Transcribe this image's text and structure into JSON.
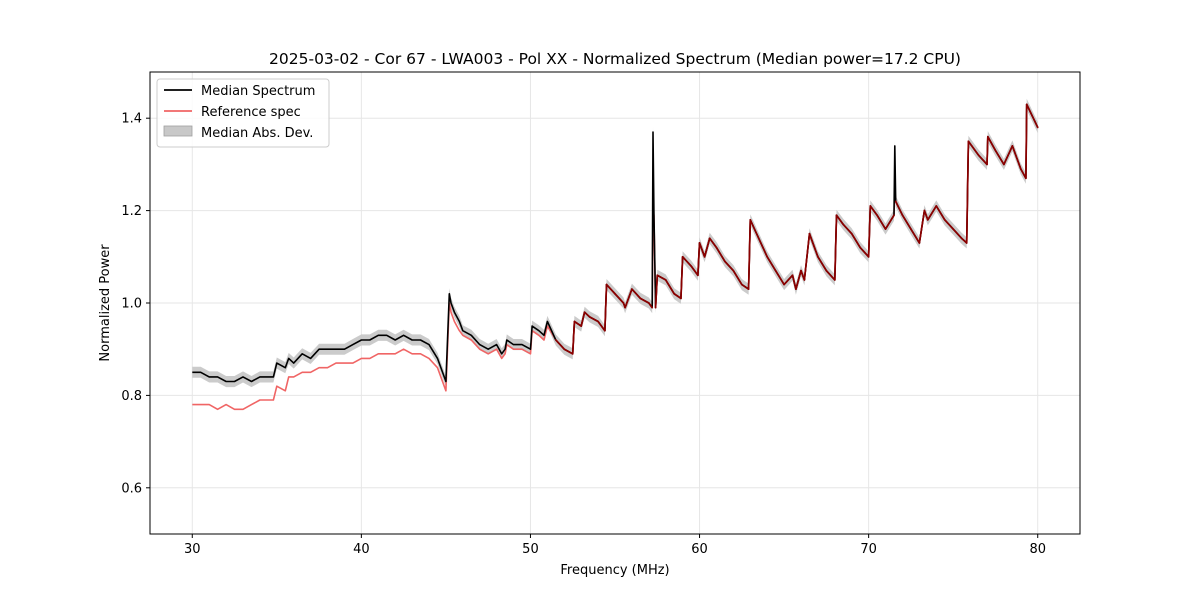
{
  "chart_data": {
    "type": "line",
    "title": "2025-03-02 - Cor 67 - LWA003 - Pol XX - Normalized Spectrum (Median power=17.2 CPU)",
    "xlabel": "Frequency (MHz)",
    "ylabel": "Normalized Power",
    "xlim": [
      27.5,
      82.5
    ],
    "ylim": [
      0.5,
      1.5
    ],
    "xticks": [
      30,
      40,
      50,
      60,
      70,
      80
    ],
    "yticks": [
      0.6,
      0.8,
      1.0,
      1.2,
      1.4
    ],
    "x_tick_labels": [
      "30",
      "40",
      "50",
      "60",
      "70",
      "80"
    ],
    "y_tick_labels": [
      "0.6",
      "0.8",
      "1.0",
      "1.2",
      "1.4"
    ],
    "grid": true,
    "legend_position": "top-left",
    "legend": [
      "Median Spectrum",
      "Reference spec",
      "Median Abs. Dev."
    ],
    "colors": {
      "median": "#000000",
      "reference": "#f06565",
      "mad_fill": "#c8c8c8",
      "overlap": "#8b0000"
    },
    "mad_halfwidth": 0.012,
    "series": [
      {
        "name": "Median Spectrum",
        "x": [
          30.0,
          30.5,
          31.0,
          31.5,
          32.0,
          32.5,
          33.0,
          33.5,
          34.0,
          34.5,
          34.8,
          35.0,
          35.5,
          35.7,
          36.0,
          36.5,
          37.0,
          37.5,
          38.0,
          38.5,
          39.0,
          39.5,
          40.0,
          40.5,
          41.0,
          41.5,
          42.0,
          42.5,
          43.0,
          43.5,
          44.0,
          44.5,
          45.0,
          45.2,
          45.3,
          45.5,
          45.8,
          46.0,
          46.5,
          47.0,
          47.5,
          48.0,
          48.3,
          48.5,
          48.6,
          49.0,
          49.5,
          50.0,
          50.1,
          50.5,
          50.8,
          51.0,
          51.5,
          52.0,
          52.5,
          52.6,
          53.0,
          53.2,
          53.5,
          54.0,
          54.4,
          54.5,
          55.0,
          55.5,
          55.6,
          56.0,
          56.5,
          57.0,
          57.2,
          57.25,
          57.3,
          57.4,
          57.5,
          58.0,
          58.5,
          58.9,
          59.0,
          59.5,
          59.9,
          60.0,
          60.3,
          60.6,
          61.0,
          61.5,
          62.0,
          62.5,
          62.9,
          63.0,
          63.5,
          64.0,
          64.5,
          65.0,
          65.5,
          65.7,
          66.0,
          66.2,
          66.5,
          66.8,
          67.0,
          67.5,
          68.0,
          68.1,
          68.5,
          69.0,
          69.5,
          70.0,
          70.1,
          70.5,
          71.0,
          71.5,
          71.55,
          71.6,
          72.0,
          72.5,
          73.0,
          73.3,
          73.5,
          74.0,
          74.5,
          75.0,
          75.5,
          75.8,
          75.9,
          76.5,
          77.0,
          77.05,
          77.5,
          78.0,
          78.5,
          79.0,
          79.3,
          79.35,
          80.0
        ],
        "values": [
          0.85,
          0.85,
          0.84,
          0.84,
          0.83,
          0.83,
          0.84,
          0.83,
          0.84,
          0.84,
          0.84,
          0.87,
          0.86,
          0.88,
          0.87,
          0.89,
          0.88,
          0.9,
          0.9,
          0.9,
          0.9,
          0.91,
          0.92,
          0.92,
          0.93,
          0.93,
          0.92,
          0.93,
          0.92,
          0.92,
          0.91,
          0.88,
          0.83,
          1.02,
          1.0,
          0.98,
          0.96,
          0.94,
          0.93,
          0.91,
          0.9,
          0.91,
          0.89,
          0.9,
          0.92,
          0.91,
          0.91,
          0.9,
          0.95,
          0.94,
          0.93,
          0.96,
          0.92,
          0.9,
          0.89,
          0.96,
          0.95,
          0.98,
          0.97,
          0.96,
          0.94,
          1.04,
          1.02,
          1.0,
          0.99,
          1.03,
          1.01,
          1.0,
          0.99,
          1.37,
          1.2,
          0.99,
          1.06,
          1.05,
          1.02,
          1.01,
          1.1,
          1.08,
          1.06,
          1.13,
          1.1,
          1.14,
          1.12,
          1.09,
          1.07,
          1.04,
          1.03,
          1.18,
          1.14,
          1.1,
          1.07,
          1.04,
          1.06,
          1.03,
          1.07,
          1.05,
          1.15,
          1.12,
          1.1,
          1.07,
          1.05,
          1.19,
          1.17,
          1.15,
          1.12,
          1.1,
          1.21,
          1.19,
          1.16,
          1.19,
          1.34,
          1.22,
          1.19,
          1.16,
          1.13,
          1.2,
          1.18,
          1.21,
          1.18,
          1.16,
          1.14,
          1.13,
          1.35,
          1.32,
          1.3,
          1.36,
          1.33,
          1.3,
          1.34,
          1.29,
          1.27,
          1.43,
          1.38
        ]
      },
      {
        "name": "Reference spec",
        "x": [
          30.0,
          30.5,
          31.0,
          31.5,
          32.0,
          32.5,
          33.0,
          33.5,
          34.0,
          34.5,
          34.8,
          35.0,
          35.5,
          35.7,
          36.0,
          36.5,
          37.0,
          37.5,
          38.0,
          38.5,
          39.0,
          39.5,
          40.0,
          40.5,
          41.0,
          41.5,
          42.0,
          42.5,
          43.0,
          43.5,
          44.0,
          44.5,
          45.0,
          45.2,
          45.3,
          45.5,
          45.8,
          46.0,
          46.5,
          47.0,
          47.5,
          48.0,
          48.3,
          48.5,
          48.6,
          49.0,
          49.5,
          50.0,
          50.1,
          50.5,
          50.8,
          51.0,
          51.5,
          52.0,
          52.5,
          52.6,
          53.0,
          53.2,
          53.5,
          54.0,
          54.4,
          54.5,
          55.0,
          55.5,
          55.6,
          56.0,
          56.5,
          57.0,
          57.2,
          57.25,
          57.3,
          57.4,
          57.5,
          58.0,
          58.5,
          58.9,
          59.0,
          59.5,
          59.9,
          60.0,
          60.3,
          60.6,
          61.0,
          61.5,
          62.0,
          62.5,
          62.9,
          63.0,
          63.5,
          64.0,
          64.5,
          65.0,
          65.5,
          65.7,
          66.0,
          66.2,
          66.5,
          66.8,
          67.0,
          67.5,
          68.0,
          68.1,
          68.5,
          69.0,
          69.5,
          70.0,
          70.1,
          70.5,
          71.0,
          71.5,
          71.55,
          71.6,
          72.0,
          72.5,
          73.0,
          73.3,
          73.5,
          74.0,
          74.5,
          75.0,
          75.5,
          75.8,
          75.9,
          76.5,
          77.0,
          77.05,
          77.5,
          78.0,
          78.5,
          79.0,
          79.3,
          79.35,
          80.0
        ],
        "values": [
          0.78,
          0.78,
          0.78,
          0.77,
          0.78,
          0.77,
          0.77,
          0.78,
          0.79,
          0.79,
          0.79,
          0.82,
          0.81,
          0.84,
          0.84,
          0.85,
          0.85,
          0.86,
          0.86,
          0.87,
          0.87,
          0.87,
          0.88,
          0.88,
          0.89,
          0.89,
          0.89,
          0.9,
          0.89,
          0.89,
          0.88,
          0.86,
          0.81,
          1.0,
          0.98,
          0.96,
          0.94,
          0.93,
          0.92,
          0.9,
          0.89,
          0.9,
          0.88,
          0.89,
          0.91,
          0.9,
          0.9,
          0.89,
          0.94,
          0.93,
          0.92,
          0.95,
          0.92,
          0.9,
          0.89,
          0.96,
          0.95,
          0.98,
          0.97,
          0.96,
          0.94,
          1.04,
          1.02,
          1.0,
          0.99,
          1.03,
          1.01,
          1.0,
          0.99,
          1.2,
          1.19,
          0.99,
          1.06,
          1.05,
          1.02,
          1.01,
          1.1,
          1.08,
          1.06,
          1.13,
          1.1,
          1.14,
          1.12,
          1.09,
          1.07,
          1.04,
          1.03,
          1.18,
          1.14,
          1.1,
          1.07,
          1.04,
          1.06,
          1.03,
          1.07,
          1.05,
          1.15,
          1.12,
          1.1,
          1.07,
          1.05,
          1.19,
          1.17,
          1.15,
          1.12,
          1.1,
          1.21,
          1.19,
          1.16,
          1.19,
          1.25,
          1.22,
          1.19,
          1.16,
          1.13,
          1.2,
          1.18,
          1.21,
          1.18,
          1.16,
          1.14,
          1.13,
          1.35,
          1.32,
          1.3,
          1.36,
          1.33,
          1.3,
          1.34,
          1.29,
          1.27,
          1.43,
          1.38
        ]
      }
    ]
  }
}
